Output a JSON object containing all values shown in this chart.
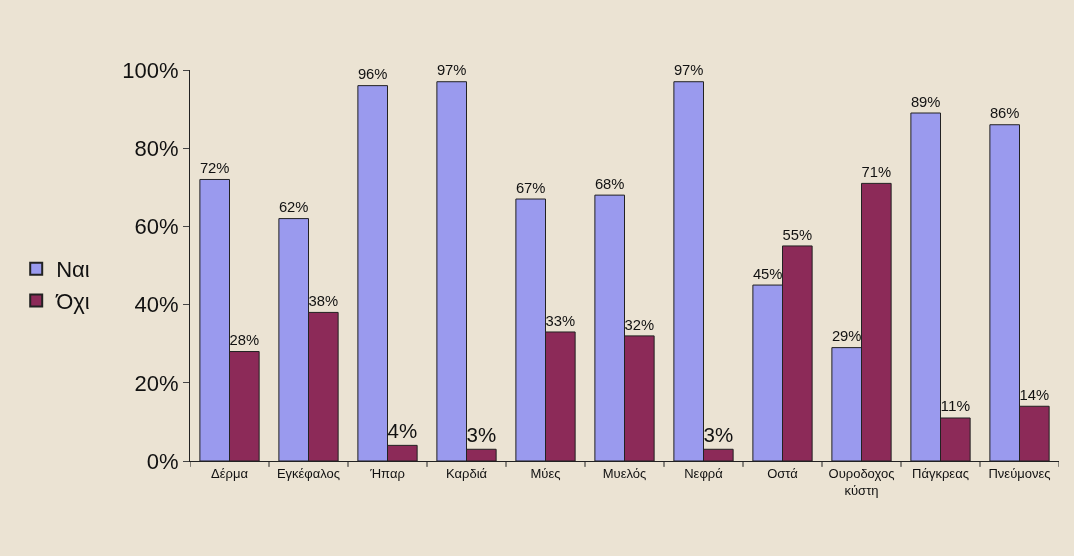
{
  "chart_data": {
    "type": "bar",
    "categories": [
      "Δέρμα",
      "Εγκέφαλος",
      "Ήπαρ",
      "Καρδιά",
      "Μύες",
      "Μυελός",
      "Νεφρά",
      "Οστά",
      "Ουροδοχος\nκύστη",
      "Πάγκρεας",
      "Πνεύμονες"
    ],
    "series": [
      {
        "name": "Ναι",
        "color": "#9a9aee",
        "values": [
          72,
          62,
          96,
          97,
          67,
          68,
          97,
          45,
          29,
          89,
          86
        ],
        "value_labels": [
          "72%",
          "62%",
          "96%",
          "97%",
          "67%",
          "68%",
          "97%",
          "45%",
          "29%",
          "89%",
          "86%"
        ]
      },
      {
        "name": "Όχι",
        "color": "#8c2a58",
        "values": [
          28,
          38,
          4,
          3,
          33,
          32,
          3,
          55,
          71,
          11,
          14
        ],
        "value_labels": [
          "28%",
          "38%",
          "4%",
          "3%",
          "33%",
          "32%",
          "3%",
          "55%",
          "71%",
          "11%",
          "14%"
        ]
      }
    ],
    "ylim": [
      0,
      100
    ],
    "yticks": [
      {
        "value": 0,
        "label": "0%"
      },
      {
        "value": 20,
        "label": "20%"
      },
      {
        "value": 40,
        "label": "40%"
      },
      {
        "value": 60,
        "label": "60%"
      },
      {
        "value": 80,
        "label": "80%"
      },
      {
        "value": 100,
        "label": "100%"
      }
    ],
    "grid": false,
    "legend": "left"
  }
}
